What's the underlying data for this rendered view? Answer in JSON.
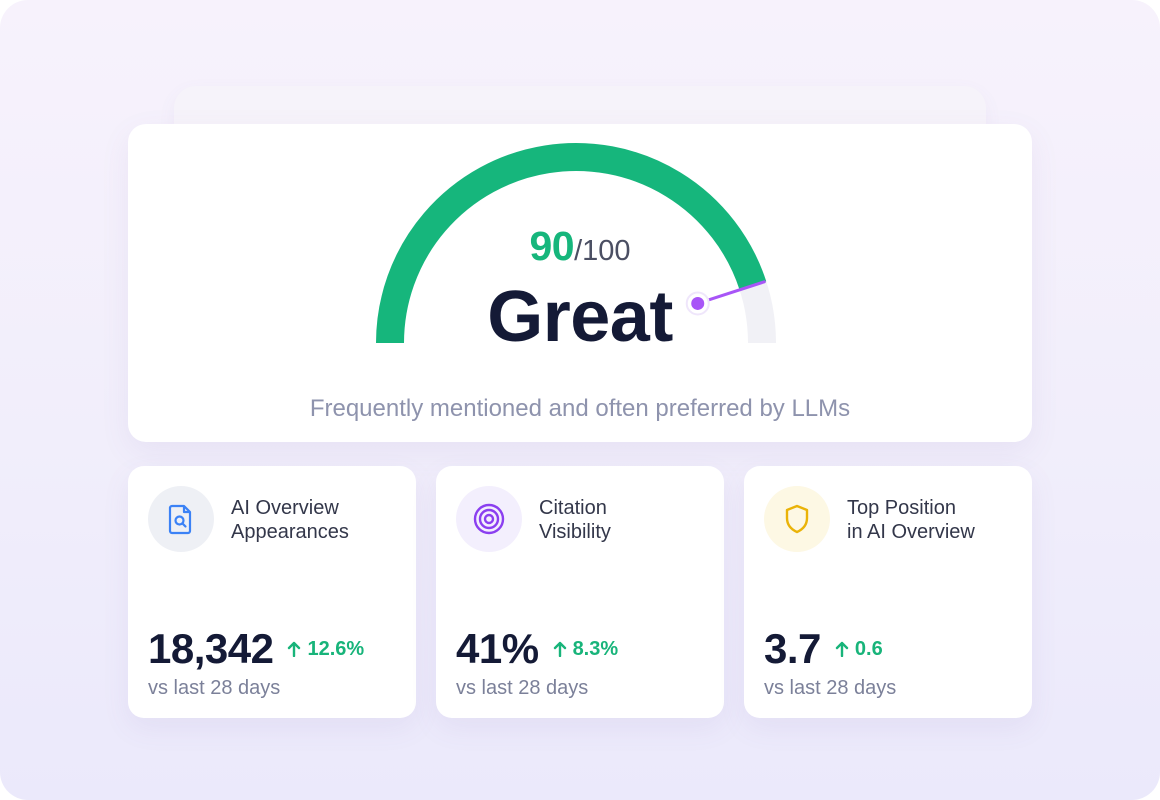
{
  "score": {
    "value": "90",
    "max": "/100",
    "fraction": 0.9,
    "grade": "Great",
    "description": "Frequently mentioned and often preferred by LLMs"
  },
  "colors": {
    "gauge_fill": "#16b67c",
    "gauge_track": "#f1f1f6",
    "needle": "#a855f7",
    "positive": "#18b47a",
    "text_dark": "#141a36"
  },
  "metrics": [
    {
      "icon": "document-search-icon",
      "title_line1": "AI Overview",
      "title_line2": "Appearances",
      "value": "18,342",
      "delta": "12.6%",
      "note": "vs last 28 days"
    },
    {
      "icon": "target-icon",
      "title_line1": "Citation",
      "title_line2": "Visibility",
      "value": "41%",
      "delta": "8.3%",
      "note": "vs last 28 days"
    },
    {
      "icon": "shield-icon",
      "title_line1": "Top Position",
      "title_line2": "in AI Overview",
      "value": "3.7",
      "delta": "0.6",
      "note": "vs last 28 days"
    }
  ]
}
